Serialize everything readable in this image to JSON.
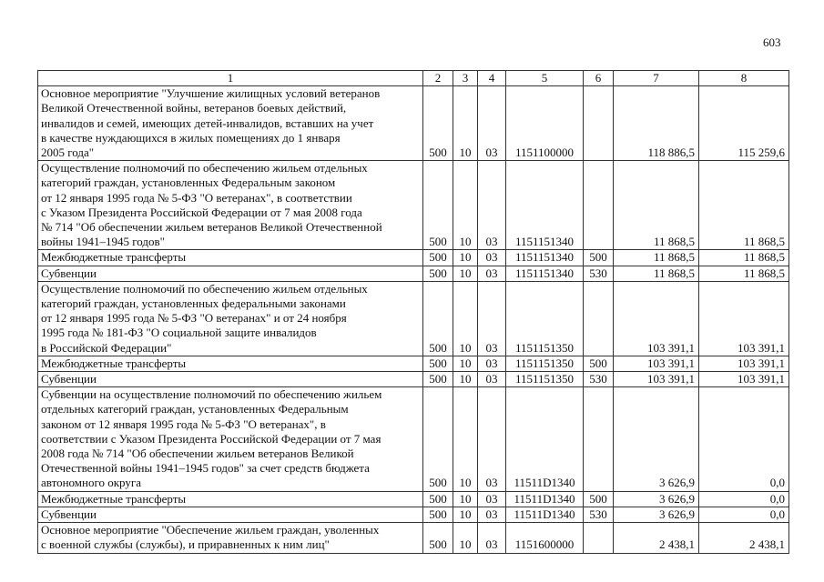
{
  "page_number": "603",
  "header": [
    "1",
    "2",
    "3",
    "4",
    "5",
    "6",
    "7",
    "8"
  ],
  "rows": [
    {
      "name": "Основное мероприятие \"Улучшение жилищных условий ветеранов\nВеликой Отечественной войны, ветеранов боевых действий,\nинвалидов и семей, имеющих детей-инвалидов, вставших на учет\nв качестве нуждающихся в жилых помещениях до 1 января\n2005 года\"",
      "c2": "500",
      "c3": "10",
      "c4": "03",
      "c5": "1151100000",
      "c6": "",
      "c7": "118 886,5",
      "c8": "115 259,6"
    },
    {
      "name": "Осуществление полномочий по обеспечению жильем отдельных\nкатегорий граждан, установленных Федеральным законом\nот 12 января 1995 года № 5-ФЗ \"О ветеранах\", в соответствии\nс Указом Президента Российской Федерации от 7 мая 2008 года\n№ 714 \"Об обеспечении жильем ветеранов Великой Отечественной\nвойны 1941–1945 годов\"",
      "c2": "500",
      "c3": "10",
      "c4": "03",
      "c5": "1151151340",
      "c6": "",
      "c7": "11 868,5",
      "c8": "11 868,5"
    },
    {
      "name": "Межбюджетные трансферты",
      "c2": "500",
      "c3": "10",
      "c4": "03",
      "c5": "1151151340",
      "c6": "500",
      "c7": "11 868,5",
      "c8": "11 868,5"
    },
    {
      "name": "Субвенции",
      "c2": "500",
      "c3": "10",
      "c4": "03",
      "c5": "1151151340",
      "c6": "530",
      "c7": "11 868,5",
      "c8": "11 868,5"
    },
    {
      "name": "Осуществление полномочий по обеспечению жильем отдельных\nкатегорий граждан, установленных федеральными законами\nот 12 января 1995 года № 5-ФЗ \"О ветеранах\" и от 24 ноября\n1995 года № 181-ФЗ \"О социальной защите инвалидов\nв Российской Федерации\"",
      "c2": "500",
      "c3": "10",
      "c4": "03",
      "c5": "1151151350",
      "c6": "",
      "c7": "103 391,1",
      "c8": "103 391,1"
    },
    {
      "name": "Межбюджетные трансферты",
      "c2": "500",
      "c3": "10",
      "c4": "03",
      "c5": "1151151350",
      "c6": "500",
      "c7": "103 391,1",
      "c8": "103 391,1"
    },
    {
      "name": "Субвенции",
      "c2": "500",
      "c3": "10",
      "c4": "03",
      "c5": "1151151350",
      "c6": "530",
      "c7": "103 391,1",
      "c8": "103 391,1"
    },
    {
      "name": "Субвенции на осуществление полномочий по обеспечению жильем\nотдельных категорий граждан, установленных Федеральным\nзаконом от 12 января 1995 года № 5-ФЗ \"О ветеранах\", в\nсоответствии с Указом Президента Российской Федерации от 7 мая\n2008 года № 714 \"Об обеспечении жильем ветеранов Великой\nОтечественной войны 1941–1945 годов\" за счет средств бюджета\nавтономного округа",
      "c2": "500",
      "c3": "10",
      "c4": "03",
      "c5": "11511D1340",
      "c6": "",
      "c7": "3 626,9",
      "c8": "0,0"
    },
    {
      "name": "Межбюджетные трансферты",
      "c2": "500",
      "c3": "10",
      "c4": "03",
      "c5": "11511D1340",
      "c6": "500",
      "c7": "3 626,9",
      "c8": "0,0"
    },
    {
      "name": "Субвенции",
      "c2": "500",
      "c3": "10",
      "c4": "03",
      "c5": "11511D1340",
      "c6": "530",
      "c7": "3 626,9",
      "c8": "0,0"
    },
    {
      "name": "Основное мероприятие \"Обеспечение жильем граждан, уволенных\nс военной службы (службы), и приравненных к ним лиц\"",
      "c2": "500",
      "c3": "10",
      "c4": "03",
      "c5": "1151600000",
      "c6": "",
      "c7": "2 438,1",
      "c8": "2 438,1"
    }
  ]
}
